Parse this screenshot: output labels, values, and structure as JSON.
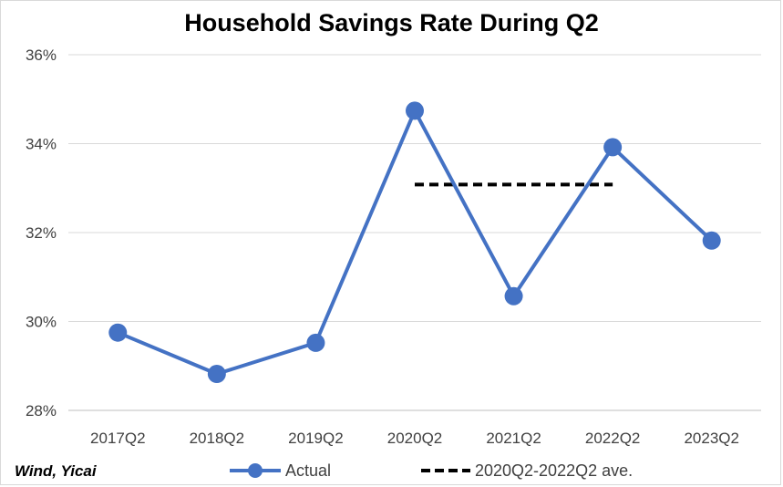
{
  "chart_data": {
    "type": "line",
    "title": "Household Savings Rate During Q2",
    "categories": [
      "2017Q2",
      "2018Q2",
      "2019Q2",
      "2020Q2",
      "2021Q2",
      "2022Q2",
      "2023Q2"
    ],
    "series": [
      {
        "name": "Actual",
        "values": [
          29.75,
          28.82,
          29.52,
          34.74,
          30.57,
          33.92,
          31.82
        ],
        "color": "#4472c4",
        "style": "solid-with-markers"
      },
      {
        "name": "2020Q2-2022Q2 ave.",
        "values": [
          null,
          null,
          null,
          33.08,
          33.08,
          33.08,
          null
        ],
        "color": "#000000",
        "style": "dashed"
      }
    ],
    "y_ticks": [
      "28%",
      "30%",
      "32%",
      "34%",
      "36%"
    ],
    "ylim": [
      28,
      36
    ],
    "grid": true,
    "legend_position": "bottom",
    "source": "Wind, Yicai"
  }
}
